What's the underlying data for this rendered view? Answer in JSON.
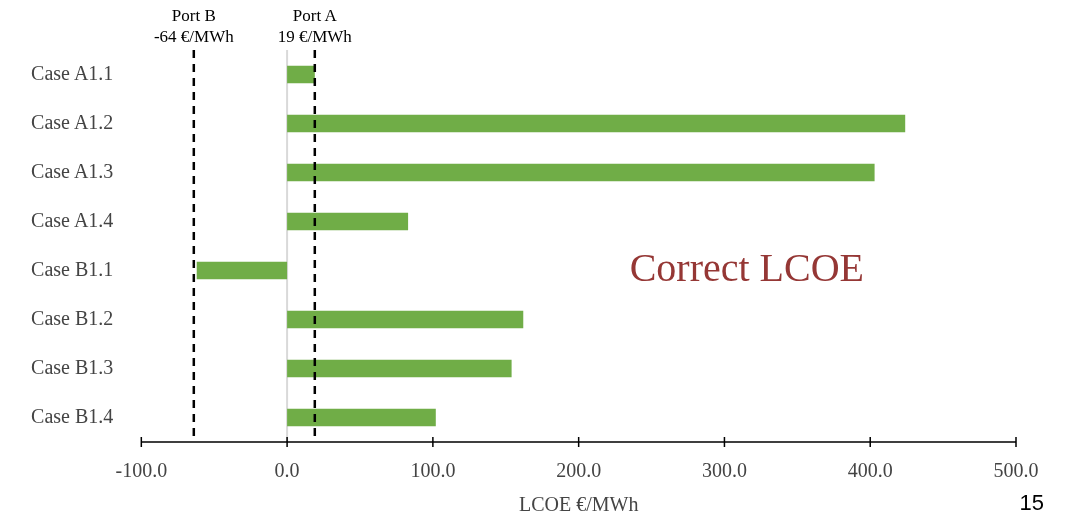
{
  "chart_data": {
    "type": "bar",
    "orientation": "horizontal",
    "categories": [
      "Case A1.1",
      "Case A1.2",
      "Case A1.3",
      "Case A1.4",
      "Case B1.1",
      "Case B1.2",
      "Case B1.3",
      "Case B1.4"
    ],
    "values": [
      19,
      424,
      403,
      83,
      -62,
      162,
      154,
      102
    ],
    "color": "#70ad47",
    "xlim": [
      -100,
      500
    ],
    "xticks": [
      {
        "value": -100,
        "label": "-100.0"
      },
      {
        "value": 0,
        "label": "0.0"
      },
      {
        "value": 100,
        "label": "100.0"
      },
      {
        "value": 200,
        "label": "200.0"
      },
      {
        "value": 300,
        "label": "300.0"
      },
      {
        "value": 400,
        "label": "400.0"
      },
      {
        "value": 500,
        "label": "500.0"
      }
    ],
    "xlabel": "LCOE €/MWh",
    "ref_lines": [
      {
        "axis": "x",
        "value": 19,
        "label": "Port A\n19 €/MWh",
        "line_style": "dashed",
        "color": "#000000"
      },
      {
        "axis": "x",
        "value": -64,
        "label": "Port B\n-64 €/MWh",
        "line_style": "dashed",
        "color": "#000000"
      }
    ],
    "annotations": [
      "Correct LCOE",
      "15"
    ],
    "legend": false
  }
}
